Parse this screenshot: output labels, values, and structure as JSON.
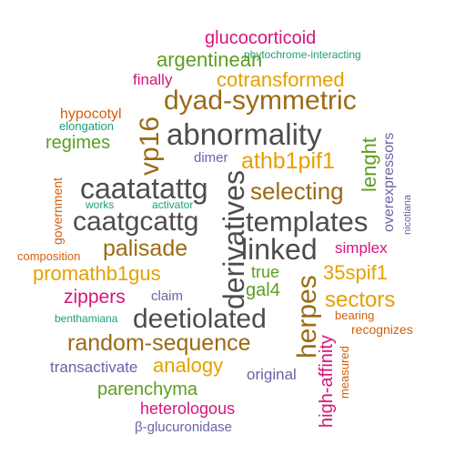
{
  "colors": {
    "gray": "#4d4d4d",
    "gold": "#e6a000",
    "brown": "#9a6b14",
    "green": "#5c9e1e",
    "magenta": "#d6157a",
    "purple": "#6a63a6",
    "orange": "#d35f0a",
    "teal": "#1b9e77"
  },
  "words": [
    {
      "text": "glucocorticoid",
      "color": "magenta"
    },
    {
      "text": "phytochrome-interacting",
      "color": "teal"
    },
    {
      "text": "argentinean",
      "color": "green"
    },
    {
      "text": "finally",
      "color": "magenta"
    },
    {
      "text": "cotransformed",
      "color": "gold"
    },
    {
      "text": "dyad-symmetric",
      "color": "brown"
    },
    {
      "text": "hypocotyl",
      "color": "orange"
    },
    {
      "text": "elongation",
      "color": "teal"
    },
    {
      "text": "vp16",
      "color": "brown"
    },
    {
      "text": "abnormality",
      "color": "gray"
    },
    {
      "text": "lenght",
      "color": "green"
    },
    {
      "text": "overexpressors",
      "color": "purple"
    },
    {
      "text": "regimes",
      "color": "green"
    },
    {
      "text": "dimer",
      "color": "purple"
    },
    {
      "text": "athb1pif1",
      "color": "gold"
    },
    {
      "text": "government",
      "color": "orange"
    },
    {
      "text": "caatatattg",
      "color": "gray"
    },
    {
      "text": "derivatives",
      "color": "gray"
    },
    {
      "text": "selecting",
      "color": "brown"
    },
    {
      "text": "nicotiana",
      "color": "purple"
    },
    {
      "text": "works",
      "color": "teal"
    },
    {
      "text": "activator",
      "color": "teal"
    },
    {
      "text": "caatgcattg",
      "color": "gray"
    },
    {
      "text": "templates",
      "color": "gray"
    },
    {
      "text": "composition",
      "color": "orange"
    },
    {
      "text": "palisade",
      "color": "brown"
    },
    {
      "text": "linked",
      "color": "gray"
    },
    {
      "text": "simplex",
      "color": "magenta"
    },
    {
      "text": "promathb1gus",
      "color": "gold"
    },
    {
      "text": "true",
      "color": "green"
    },
    {
      "text": "35spif1",
      "color": "gold"
    },
    {
      "text": "zippers",
      "color": "magenta"
    },
    {
      "text": "claim",
      "color": "purple"
    },
    {
      "text": "gal4",
      "color": "green"
    },
    {
      "text": "herpes",
      "color": "brown"
    },
    {
      "text": "sectors",
      "color": "gold"
    },
    {
      "text": "benthamiana",
      "color": "teal"
    },
    {
      "text": "deetiolated",
      "color": "gray"
    },
    {
      "text": "bearing",
      "color": "orange"
    },
    {
      "text": "recognizes",
      "color": "orange"
    },
    {
      "text": "random-sequence",
      "color": "brown"
    },
    {
      "text": "high-affinity",
      "color": "magenta"
    },
    {
      "text": "measured",
      "color": "orange"
    },
    {
      "text": "transactivate",
      "color": "purple"
    },
    {
      "text": "analogy",
      "color": "gold"
    },
    {
      "text": "original",
      "color": "purple"
    },
    {
      "text": "parenchyma",
      "color": "green"
    },
    {
      "text": "heterologous",
      "color": "magenta"
    },
    {
      "text": "β-glucuronidase",
      "color": "purple"
    }
  ]
}
